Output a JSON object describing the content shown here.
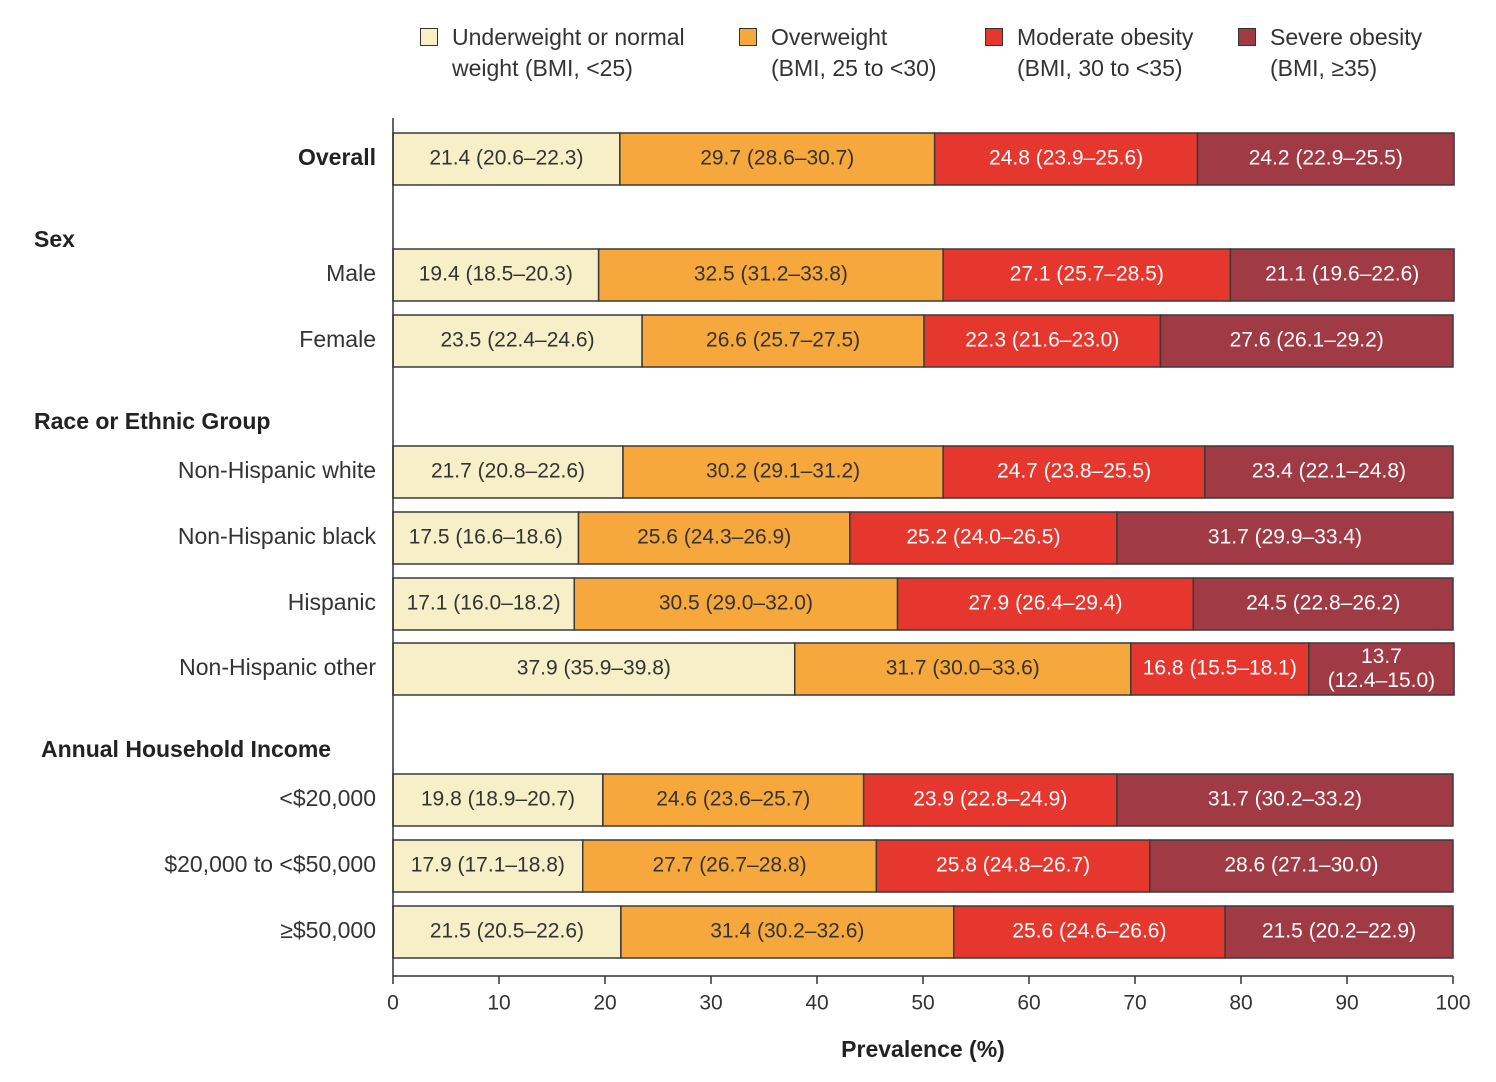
{
  "chart_data": {
    "type": "bar",
    "orientation": "horizontal",
    "stacked": true,
    "xlabel": "Prevalence (%)",
    "xlim": [
      0,
      100
    ],
    "xticks": [
      "0",
      "10",
      "20",
      "30",
      "40",
      "50",
      "60",
      "70",
      "80",
      "90",
      "100"
    ],
    "grid": false,
    "legend_position": "top",
    "series": [
      {
        "name_line1": "Underweight or normal",
        "name_line2": "weight (BMI, <25)",
        "color": "#f6efc8",
        "text_color": "#333333"
      },
      {
        "name_line1": "Overweight",
        "name_line2": "(BMI, 25 to <30)",
        "color": "#f7a83c",
        "text_color": "#333333"
      },
      {
        "name_line1": "Moderate obesity",
        "name_line2": "(BMI, 30 to <35)",
        "color": "#e6372f",
        "text_color": "#ffffff"
      },
      {
        "name_line1": "Severe obesity",
        "name_line2": "(BMI, ≥35)",
        "color": "#a03a44",
        "text_color": "#ffffff"
      }
    ],
    "rows": [
      {
        "group": "",
        "label": "Overall",
        "bold": true,
        "values": [
          21.4,
          29.7,
          24.8,
          24.2
        ],
        "texts": [
          "21.4 (20.6–22.3)",
          "29.7 (28.6–30.7)",
          "24.8 (23.9–25.6)",
          "24.2 (22.9–25.5)"
        ]
      },
      {
        "group": "Sex",
        "label": "Male",
        "values": [
          19.4,
          32.5,
          27.1,
          21.1
        ],
        "texts": [
          "19.4 (18.5–20.3)",
          "32.5 (31.2–33.8)",
          "27.1 (25.7–28.5)",
          "21.1 (19.6–22.6)"
        ]
      },
      {
        "group": "",
        "label": "Female",
        "values": [
          23.5,
          26.6,
          22.3,
          27.6
        ],
        "texts": [
          "23.5 (22.4–24.6)",
          "26.6 (25.7–27.5)",
          "22.3 (21.6–23.0)",
          "27.6 (26.1–29.2)"
        ]
      },
      {
        "group": "Race or Ethnic Group",
        "label": "Non-Hispanic white",
        "values": [
          21.7,
          30.2,
          24.7,
          23.4
        ],
        "texts": [
          "21.7 (20.8–22.6)",
          "30.2 (29.1–31.2)",
          "24.7 (23.8–25.5)",
          "23.4 (22.1–24.8)"
        ]
      },
      {
        "group": "",
        "label": "Non-Hispanic black",
        "values": [
          17.5,
          25.6,
          25.2,
          31.7
        ],
        "texts": [
          "17.5 (16.6–18.6)",
          "25.6 (24.3–26.9)",
          "25.2 (24.0–26.5)",
          "31.7 (29.9–33.4)"
        ]
      },
      {
        "group": "",
        "label": "Hispanic",
        "values": [
          17.1,
          30.5,
          27.9,
          24.5
        ],
        "texts": [
          "17.1 (16.0–18.2)",
          "30.5 (29.0–32.0)",
          "27.9 (26.4–29.4)",
          "24.5 (22.8–26.2)"
        ]
      },
      {
        "group": "",
        "label": "Non-Hispanic other",
        "values": [
          37.9,
          31.7,
          16.8,
          13.7
        ],
        "texts": [
          "37.9 (35.9–39.8)",
          "31.7 (30.0–33.6)",
          "16.8 (15.5–18.1)",
          "13.7\n(12.4–15.0)"
        ]
      },
      {
        "group": "Annual Household Income",
        "label": "<$20,000",
        "values": [
          19.8,
          24.6,
          23.9,
          31.7
        ],
        "texts": [
          "19.8 (18.9–20.7)",
          "24.6 (23.6–25.7)",
          "23.9 (22.8–24.9)",
          "31.7 (30.2–33.2)"
        ]
      },
      {
        "group": "",
        "label": "$20,000 to <$50,000",
        "values": [
          17.9,
          27.7,
          25.8,
          28.6
        ],
        "texts": [
          "17.9 (17.1–18.8)",
          "27.7 (26.7–28.8)",
          "25.8 (24.8–26.7)",
          "28.6 (27.1–30.0)"
        ]
      },
      {
        "group": "",
        "label": "≥$50,000",
        "values": [
          21.5,
          31.4,
          25.6,
          21.5
        ],
        "texts": [
          "21.5 (20.5–22.6)",
          "31.4 (30.2–32.6)",
          "25.6 (24.6–26.6)",
          "21.5 (20.2–22.9)"
        ]
      }
    ]
  }
}
